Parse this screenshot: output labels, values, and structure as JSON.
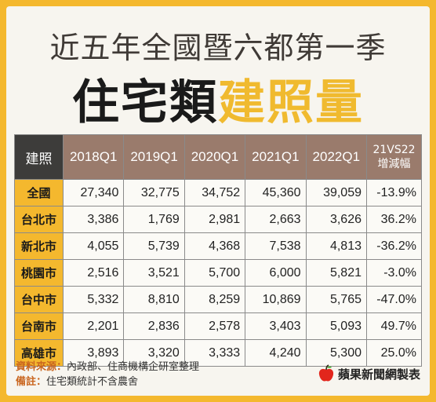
{
  "title_line1": "近五年全國暨六都第一季",
  "title_line2_black": "住宅類",
  "title_line2_yellow": "建照量",
  "table": {
    "corner": "建照",
    "columns": [
      "2018Q1",
      "2019Q1",
      "2020Q1",
      "2021Q1",
      "2022Q1"
    ],
    "vs_header_prefix": "21",
    "vs_header_vs": "VS",
    "vs_header_suffix": "22",
    "vs_header_line2": "增減幅",
    "rows": [
      {
        "region": "全國",
        "values": [
          "27,340",
          "32,775",
          "34,752",
          "45,360",
          "39,059"
        ],
        "change": "-13.9%"
      },
      {
        "region": "台北市",
        "values": [
          "3,386",
          "1,769",
          "2,981",
          "2,663",
          "3,626"
        ],
        "change": "36.2%"
      },
      {
        "region": "新北市",
        "values": [
          "4,055",
          "5,739",
          "4,368",
          "7,538",
          "4,813"
        ],
        "change": "-36.2%"
      },
      {
        "region": "桃園市",
        "values": [
          "2,516",
          "3,521",
          "5,700",
          "6,000",
          "5,821"
        ],
        "change": "-3.0%"
      },
      {
        "region": "台中市",
        "values": [
          "5,332",
          "8,810",
          "8,259",
          "10,869",
          "5,765"
        ],
        "change": "-47.0%"
      },
      {
        "region": "台南市",
        "values": [
          "2,201",
          "2,836",
          "2,578",
          "3,403",
          "5,093"
        ],
        "change": "49.7%"
      },
      {
        "region": "高雄市",
        "values": [
          "3,893",
          "3,320",
          "3,333",
          "4,240",
          "5,300"
        ],
        "change": "25.0%"
      }
    ]
  },
  "notes": {
    "source_label": "資料來源：",
    "source_text": "內政部、住商機構企研室整理",
    "remark_label": "備註：",
    "remark_text": "住宅類統計不含農舍"
  },
  "logo_text": "蘋果新聞網製表",
  "colors": {
    "accent": "#f4b82e",
    "header_brown": "#9a7b6c",
    "corner_dark": "#3d3c3a"
  }
}
